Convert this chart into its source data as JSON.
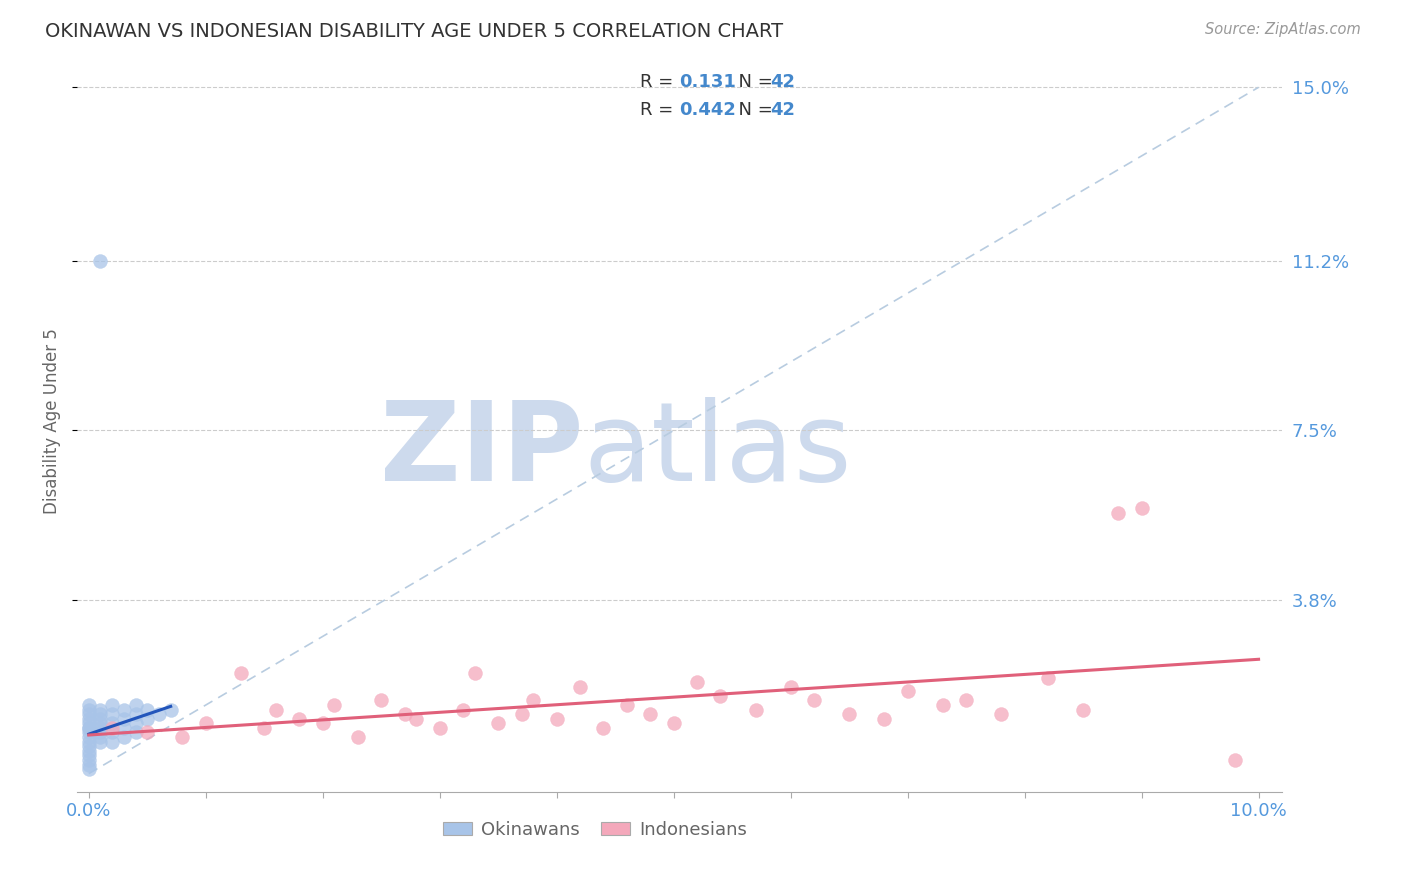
{
  "title": "OKINAWAN VS INDONESIAN DISABILITY AGE UNDER 5 CORRELATION CHART",
  "source": "Source: ZipAtlas.com",
  "ylabel": "Disability Age Under 5",
  "xlim": [
    -0.001,
    0.102
  ],
  "ylim": [
    -0.004,
    0.158
  ],
  "ytick_positions": [
    0.038,
    0.075,
    0.112,
    0.15
  ],
  "ytick_labels": [
    "3.8%",
    "7.5%",
    "11.2%",
    "15.0%"
  ],
  "xtick_positions": [
    0.0,
    0.01,
    0.02,
    0.03,
    0.04,
    0.05,
    0.06,
    0.07,
    0.08,
    0.09,
    0.1
  ],
  "xtick_labels": [
    "0.0%",
    "",
    "",
    "",
    "",
    "",
    "",
    "",
    "",
    "",
    "10.0%"
  ],
  "R_okinawan": 0.131,
  "N_okinawan": 42,
  "R_indonesian": 0.442,
  "N_indonesian": 42,
  "blue_color": "#a8c4e8",
  "pink_color": "#f4a8bb",
  "blue_line_color": "#2255bb",
  "pink_line_color": "#e0607a",
  "dashed_line_color": "#b8cce0",
  "watermark_zip_color": "#cddaed",
  "watermark_atlas_color": "#cddaed",
  "title_color": "#333333",
  "source_color": "#999999",
  "axis_label_color": "#5599dd",
  "ylabel_color": "#666666",
  "legend_text_color": "#333333",
  "legend_value_color": "#4488cc",
  "legend_N_color": "#4488cc",
  "bottom_legend_color": "#666666",
  "grid_color": "#cccccc",
  "spine_color": "#aaaaaa",
  "okinawan_x": [
    0.0,
    0.0,
    0.0,
    0.0,
    0.0,
    0.0,
    0.0,
    0.0,
    0.0,
    0.0,
    0.0,
    0.0,
    0.0,
    0.0,
    0.0,
    0.0,
    0.001,
    0.001,
    0.001,
    0.001,
    0.001,
    0.001,
    0.001,
    0.001,
    0.002,
    0.002,
    0.002,
    0.002,
    0.002,
    0.003,
    0.003,
    0.003,
    0.003,
    0.004,
    0.004,
    0.004,
    0.004,
    0.005,
    0.005,
    0.006,
    0.007,
    0.001
  ],
  "okinawan_y": [
    0.004,
    0.005,
    0.007,
    0.009,
    0.01,
    0.011,
    0.012,
    0.013,
    0.002,
    0.003,
    0.006,
    0.008,
    0.01,
    0.014,
    0.015,
    0.001,
    0.008,
    0.01,
    0.012,
    0.014,
    0.007,
    0.009,
    0.011,
    0.013,
    0.009,
    0.011,
    0.013,
    0.007,
    0.015,
    0.01,
    0.012,
    0.014,
    0.008,
    0.011,
    0.013,
    0.009,
    0.015,
    0.012,
    0.014,
    0.013,
    0.014,
    0.112
  ],
  "indonesian_x": [
    0.002,
    0.005,
    0.008,
    0.01,
    0.013,
    0.015,
    0.016,
    0.018,
    0.02,
    0.021,
    0.023,
    0.025,
    0.027,
    0.028,
    0.03,
    0.032,
    0.033,
    0.035,
    0.037,
    0.038,
    0.04,
    0.042,
    0.044,
    0.046,
    0.048,
    0.05,
    0.052,
    0.054,
    0.057,
    0.06,
    0.062,
    0.065,
    0.068,
    0.07,
    0.073,
    0.075,
    0.078,
    0.082,
    0.085,
    0.088,
    0.09,
    0.098
  ],
  "indonesian_y": [
    0.01,
    0.009,
    0.008,
    0.011,
    0.022,
    0.01,
    0.014,
    0.012,
    0.011,
    0.015,
    0.008,
    0.016,
    0.013,
    0.012,
    0.01,
    0.014,
    0.022,
    0.011,
    0.013,
    0.016,
    0.012,
    0.019,
    0.01,
    0.015,
    0.013,
    0.011,
    0.02,
    0.017,
    0.014,
    0.019,
    0.016,
    0.013,
    0.012,
    0.018,
    0.015,
    0.016,
    0.013,
    0.021,
    0.014,
    0.057,
    0.058,
    0.003
  ]
}
